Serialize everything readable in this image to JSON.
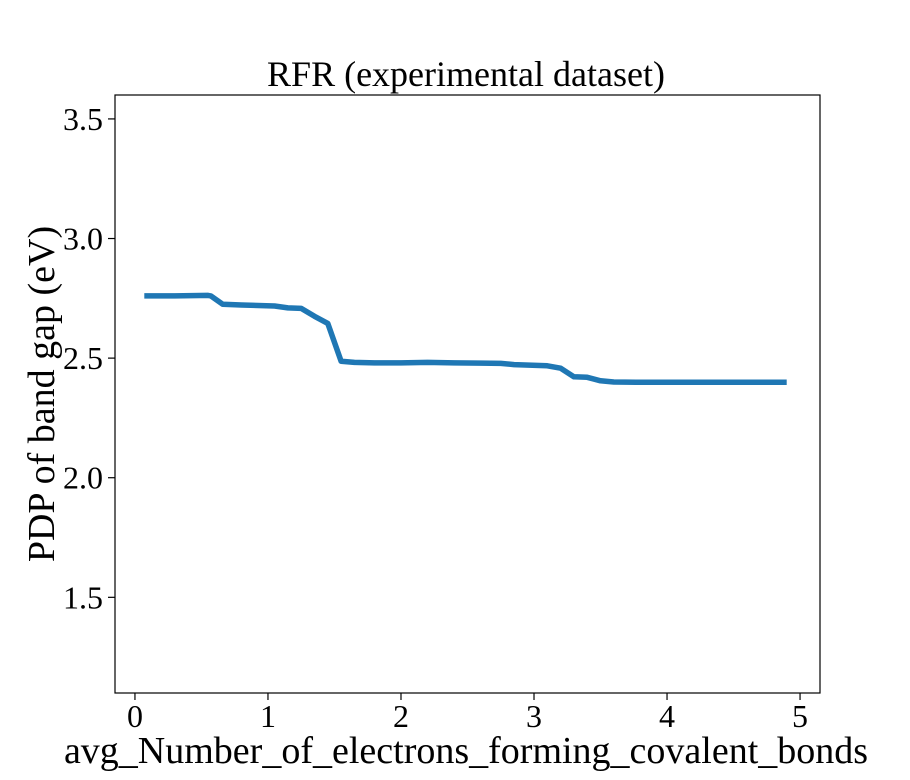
{
  "chart_data": {
    "type": "line",
    "title": "RFR (experimental dataset)",
    "xlabel": "avg_Number_of_electrons_forming_covalent_bonds",
    "ylabel": "PDP of band gap (eV)",
    "xlim": [
      -0.15,
      5.15
    ],
    "ylim": [
      1.1,
      3.6
    ],
    "x_ticks": [
      0,
      1,
      2,
      3,
      4,
      5
    ],
    "x_tick_labels": [
      "0",
      "1",
      "2",
      "3",
      "4",
      "5"
    ],
    "y_ticks": [
      1.5,
      2.0,
      2.5,
      3.0,
      3.5
    ],
    "y_tick_labels": [
      "1.5",
      "2.0",
      "2.5",
      "3.0",
      "3.5"
    ],
    "grid": false,
    "series": [
      {
        "color": "#1f77b4",
        "x": [
          0.07,
          0.3,
          0.55,
          0.57,
          0.66,
          0.8,
          1.05,
          1.15,
          1.25,
          1.35,
          1.45,
          1.55,
          1.65,
          1.8,
          2.0,
          2.2,
          2.4,
          2.6,
          2.75,
          2.85,
          3.1,
          3.2,
          3.3,
          3.4,
          3.5,
          3.6,
          3.8,
          4.2,
          4.6,
          4.9
        ],
        "y": [
          2.76,
          2.76,
          2.762,
          2.76,
          2.725,
          2.722,
          2.718,
          2.71,
          2.708,
          2.675,
          2.645,
          2.487,
          2.482,
          2.48,
          2.48,
          2.482,
          2.48,
          2.479,
          2.478,
          2.473,
          2.468,
          2.458,
          2.422,
          2.42,
          2.405,
          2.4,
          2.399,
          2.399,
          2.399,
          2.399
        ]
      }
    ]
  }
}
